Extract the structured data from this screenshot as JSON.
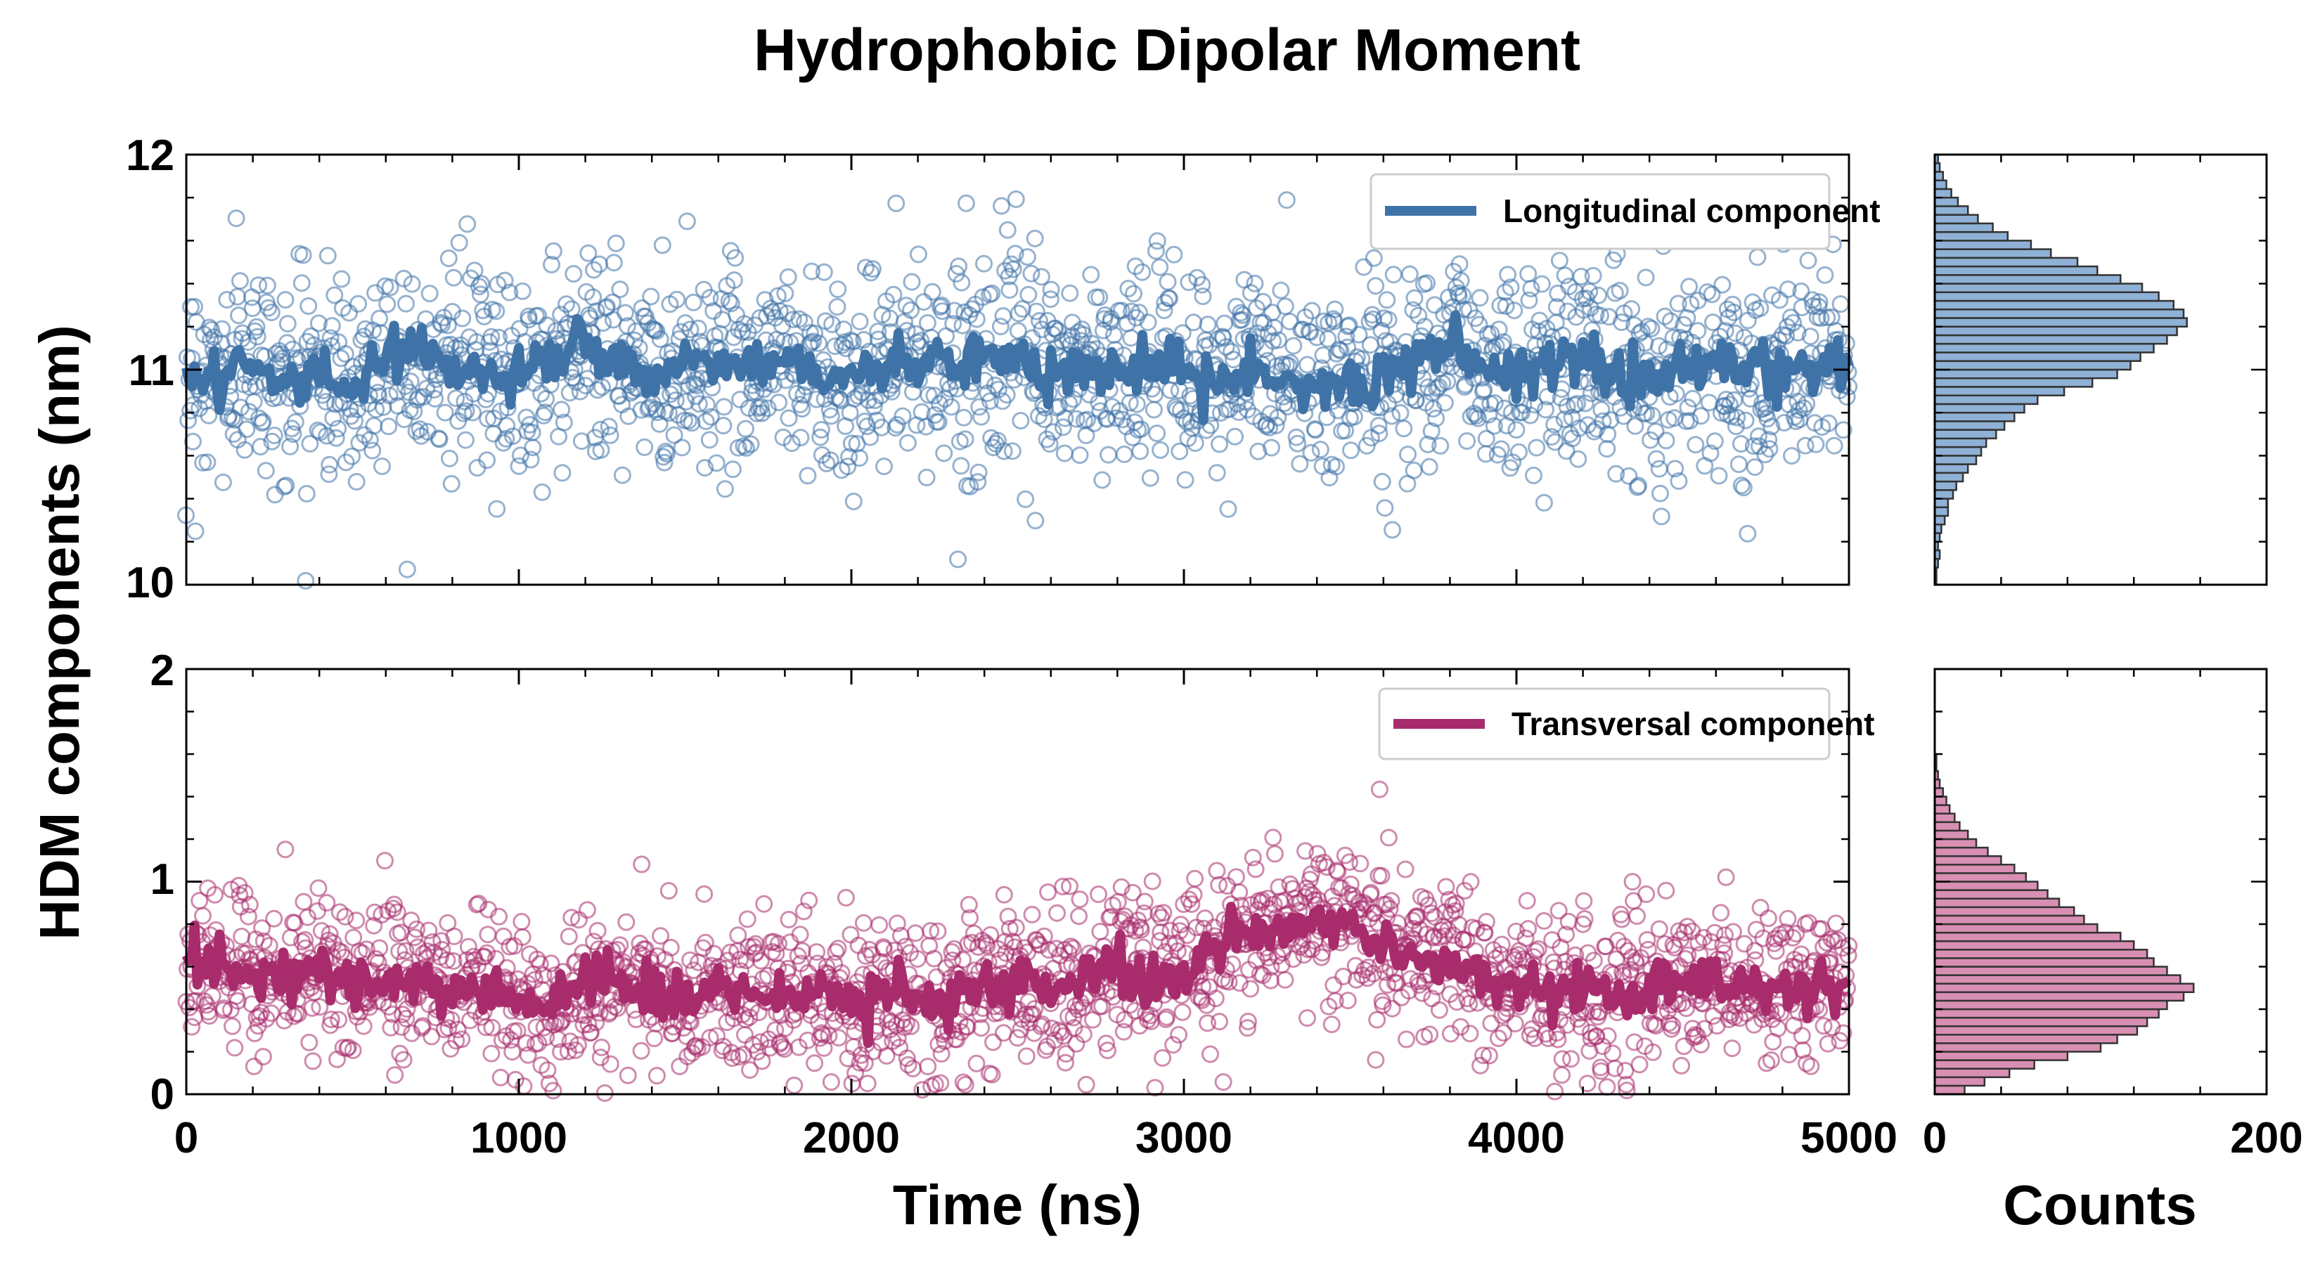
{
  "chart_data": {
    "title": "Hydrophobic Dipolar Moment",
    "ylabel": "HDM components (nm)",
    "xlabel": "Time (ns)",
    "hist_xlabel": "Counts",
    "colors": {
      "longitudinal": "#3f73a7",
      "transversal": "#a82c6c"
    },
    "panels": [
      {
        "id": "longitudinal",
        "type": "scatter+line",
        "legend": "Longitudinal component",
        "legend_location": "top-right",
        "xlim": [
          0,
          5000
        ],
        "ylim": [
          10,
          12
        ],
        "yticks": [
          "10",
          "11",
          "12"
        ],
        "scatter_stats": {
          "n": 1800,
          "mean": 11.02,
          "std": 0.28
        },
        "smoothed_line": {
          "x": [
            0,
            100,
            200,
            300,
            400,
            500,
            600,
            700,
            800,
            900,
            1000,
            1100,
            1200,
            1300,
            1400,
            1500,
            1600,
            1700,
            1800,
            1900,
            2000,
            2100,
            2200,
            2300,
            2400,
            2500,
            2600,
            2700,
            2800,
            2900,
            3000,
            3100,
            3200,
            3300,
            3400,
            3500,
            3600,
            3700,
            3800,
            3900,
            4000,
            4100,
            4200,
            4300,
            4400,
            4500,
            4600,
            4700,
            4800,
            4900,
            5000
          ],
          "y": [
            10.98,
            10.97,
            11.02,
            10.95,
            11.0,
            10.92,
            11.05,
            11.08,
            11.02,
            11.0,
            10.98,
            11.05,
            11.12,
            11.02,
            10.95,
            11.03,
            11.05,
            11.02,
            11.08,
            10.98,
            10.96,
            11.0,
            11.05,
            11.02,
            11.1,
            11.05,
            10.98,
            11.0,
            10.98,
            11.02,
            11.0,
            10.95,
            11.03,
            10.98,
            10.9,
            10.95,
            10.98,
            11.05,
            11.15,
            10.98,
            11.0,
            11.02,
            11.05,
            11.0,
            10.95,
            11.03,
            11.05,
            11.0,
            11.02,
            11.0,
            11.03
          ]
        }
      },
      {
        "id": "transversal",
        "type": "scatter+line",
        "legend": "Transversal component",
        "legend_location": "top-right",
        "xlim": [
          0,
          5000
        ],
        "ylim": [
          0,
          2
        ],
        "yticks": [
          "0",
          "1",
          "2"
        ],
        "xticks": [
          "0",
          "1000",
          "2000",
          "3000",
          "4000",
          "5000"
        ],
        "scatter_stats": {
          "n": 1800,
          "mean": 0.55,
          "std": 0.22
        },
        "smoothed_line": {
          "x": [
            0,
            100,
            200,
            300,
            400,
            500,
            600,
            700,
            800,
            900,
            1000,
            1100,
            1200,
            1300,
            1400,
            1500,
            1600,
            1700,
            1800,
            1900,
            2000,
            2100,
            2200,
            2300,
            2400,
            2500,
            2600,
            2700,
            2800,
            2900,
            3000,
            3100,
            3200,
            3300,
            3400,
            3500,
            3600,
            3700,
            3800,
            3900,
            4000,
            4100,
            4200,
            4300,
            4400,
            4500,
            4600,
            4700,
            4800,
            4900,
            5000
          ],
          "y": [
            0.62,
            0.6,
            0.55,
            0.58,
            0.6,
            0.5,
            0.52,
            0.55,
            0.48,
            0.5,
            0.45,
            0.42,
            0.55,
            0.52,
            0.48,
            0.45,
            0.5,
            0.48,
            0.45,
            0.5,
            0.45,
            0.48,
            0.45,
            0.42,
            0.5,
            0.52,
            0.5,
            0.55,
            0.6,
            0.52,
            0.55,
            0.72,
            0.75,
            0.78,
            0.82,
            0.8,
            0.72,
            0.65,
            0.6,
            0.55,
            0.52,
            0.48,
            0.5,
            0.45,
            0.52,
            0.5,
            0.55,
            0.5,
            0.52,
            0.5,
            0.52
          ]
        }
      }
    ],
    "histograms": [
      {
        "id": "longitudinal-hist",
        "type": "horizontal-bar",
        "xlim": [
          0,
          200
        ],
        "xticks": [
          "0",
          "200"
        ],
        "bin_start": 10.0,
        "bin_width": 0.04,
        "counts": [
          1,
          1,
          2,
          3,
          2,
          3,
          4,
          6,
          8,
          8,
          11,
          13,
          17,
          20,
          25,
          28,
          31,
          37,
          42,
          48,
          54,
          62,
          78,
          95,
          110,
          118,
          124,
          132,
          140,
          146,
          152,
          150,
          144,
          135,
          125,
          112,
          98,
          86,
          70,
          58,
          44,
          35,
          26,
          20,
          14,
          10,
          7,
          5,
          3,
          2
        ]
      },
      {
        "id": "transversal-hist",
        "type": "horizontal-bar",
        "xlim": [
          0,
          200
        ],
        "xticks": [
          "0",
          "200"
        ],
        "bin_start": 0.0,
        "bin_width": 0.04,
        "counts": [
          18,
          30,
          45,
          60,
          80,
          100,
          110,
          122,
          128,
          135,
          140,
          150,
          156,
          148,
          140,
          132,
          128,
          120,
          112,
          98,
          90,
          84,
          75,
          68,
          62,
          55,
          48,
          40,
          32,
          25,
          20,
          15,
          12,
          9,
          7,
          5,
          3,
          2,
          1,
          1,
          0,
          0,
          0,
          0,
          0,
          0,
          0,
          0,
          0,
          0
        ]
      }
    ]
  }
}
